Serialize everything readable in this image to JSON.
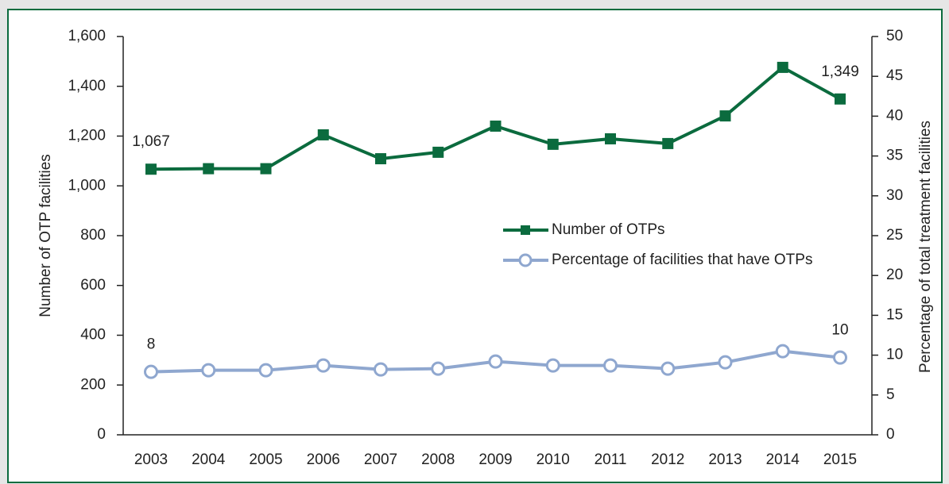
{
  "chart_data": {
    "type": "line",
    "categories": [
      "2003",
      "2004",
      "2005",
      "2006",
      "2007",
      "2008",
      "2009",
      "2010",
      "2011",
      "2012",
      "2013",
      "2014",
      "2015"
    ],
    "ylabel": "Number of OTP facilities",
    "y2label": "Percentage of total treatment facilities",
    "ylim": [
      0,
      1600
    ],
    "yticks": [
      0,
      {
        "value": 200,
        "label": "200"
      },
      {
        "value": 400,
        "label": "400"
      },
      {
        "value": 600,
        "label": "600"
      },
      {
        "value": 800,
        "label": "800"
      },
      {
        "value": 1000,
        "label": "1,000"
      },
      {
        "value": 1200,
        "label": "1,200"
      },
      {
        "value": 1400,
        "label": "1,400"
      },
      {
        "value": 1600,
        "label": "1,600"
      }
    ],
    "y2lim": [
      0,
      50
    ],
    "y2ticks": [
      0,
      5,
      10,
      15,
      20,
      25,
      30,
      35,
      40,
      45,
      50
    ],
    "series": [
      {
        "name": "Number of OTPs",
        "color": "#0b6b3e",
        "marker": "square",
        "values": [
          1067,
          1069,
          1069,
          1205,
          1109,
          1135,
          1240,
          1167,
          1189,
          1170,
          1281,
          1476,
          1349
        ],
        "value_labels": [
          "1,067",
          null,
          null,
          null,
          null,
          null,
          null,
          null,
          null,
          null,
          null,
          null,
          "1,349"
        ]
      },
      {
        "name": "Percentage of facilities that have OTPs",
        "color": "#8fa7cf",
        "marker": "circle",
        "axis": "y2",
        "values": [
          7.9,
          8.1,
          8.1,
          8.7,
          8.2,
          8.3,
          9.2,
          8.7,
          8.7,
          8.3,
          9.1,
          10.5,
          9.7
        ],
        "value_labels": [
          "8",
          null,
          null,
          null,
          null,
          null,
          null,
          null,
          null,
          null,
          null,
          null,
          "10"
        ]
      }
    ]
  }
}
